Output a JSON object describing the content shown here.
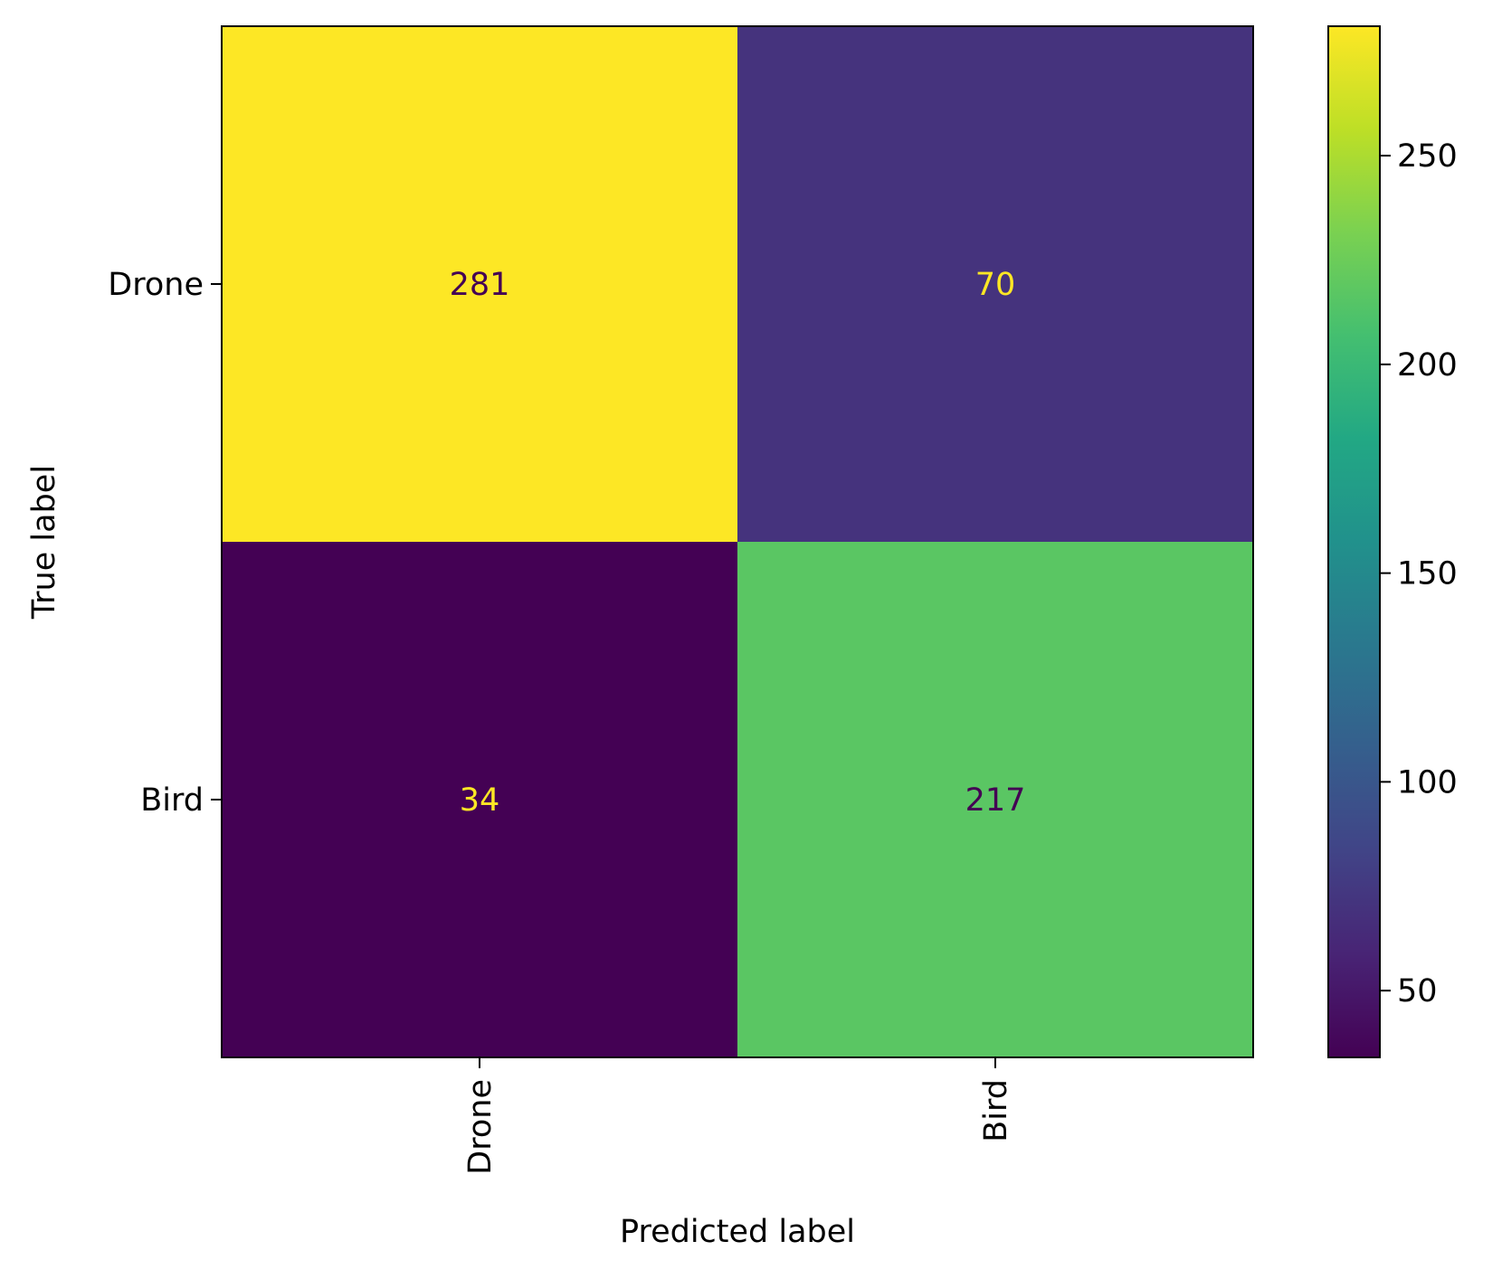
{
  "chart_data": {
    "type": "heatmap",
    "title": "",
    "xlabel": "Predicted label",
    "ylabel": "True label",
    "x_categories": [
      "Drone",
      "Bird"
    ],
    "y_categories": [
      "Drone",
      "Bird"
    ],
    "values": [
      [
        281,
        70
      ],
      [
        34,
        217
      ]
    ],
    "colormap": "viridis",
    "colorbar": {
      "range": [
        34,
        281
      ],
      "ticks": [
        50,
        100,
        150,
        200,
        250
      ],
      "tick_labels": [
        "50",
        "100",
        "150",
        "200",
        "250"
      ]
    },
    "x_tick_rotation": "vertical",
    "grid": false
  }
}
